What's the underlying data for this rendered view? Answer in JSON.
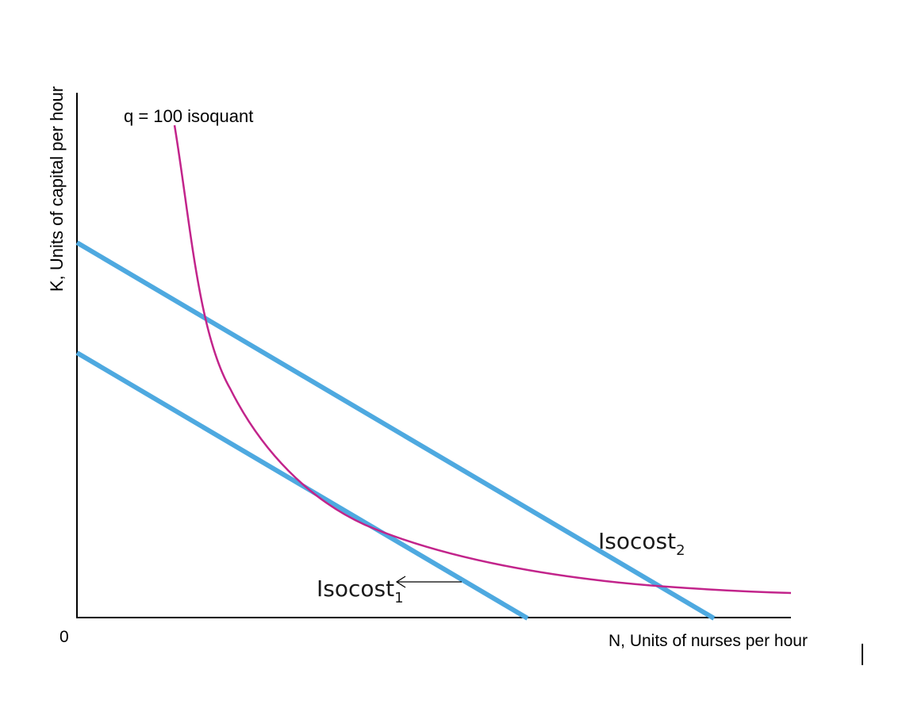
{
  "diagram": {
    "y_axis_label": "K, Units of capital per hour",
    "x_axis_label": "N, Units of nurses  per hour",
    "origin_label": "0",
    "isoquant_label": "q = 100 isoquant",
    "isocost1_label": "Isocost",
    "isocost1_subscript": "1",
    "isocost2_label": "Isocost",
    "isocost2_subscript": "2",
    "colors": {
      "isocost": "#4ea9e0",
      "isoquant": "#c2248b",
      "axes": "#000000"
    }
  }
}
